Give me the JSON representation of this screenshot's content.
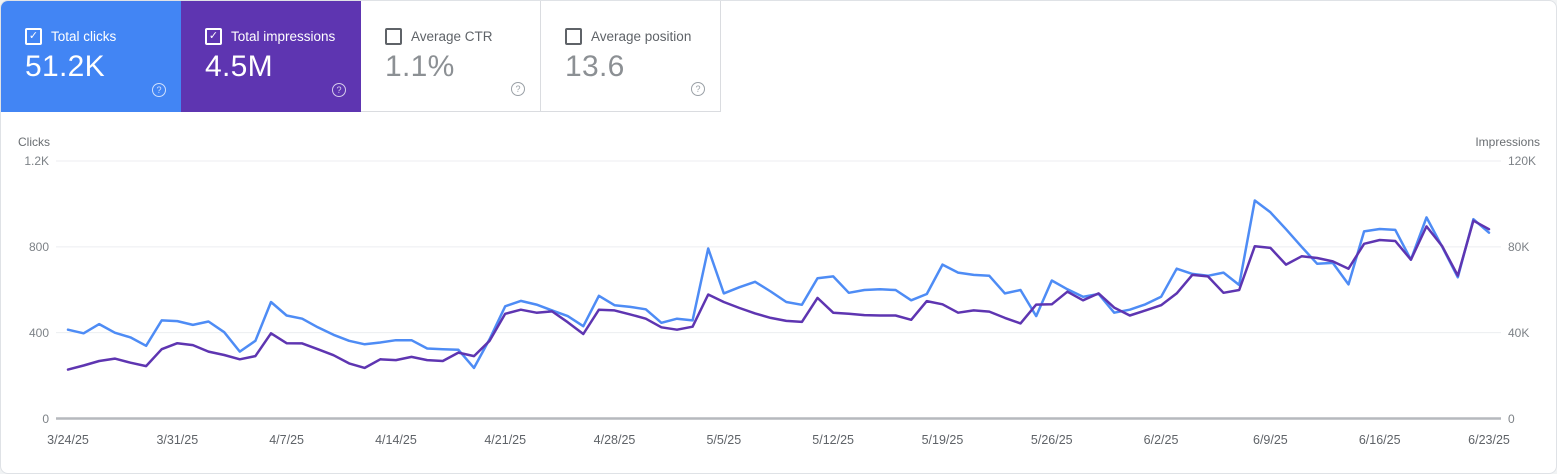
{
  "cards": [
    {
      "label": "Total clicks",
      "value": "51.2K",
      "checked": true,
      "bg": "#4285f4"
    },
    {
      "label": "Total impressions",
      "value": "4.5M",
      "checked": true,
      "bg": "#5e35b1"
    },
    {
      "label": "Average CTR",
      "value": "1.1%",
      "checked": false,
      "bg": "#ffffff"
    },
    {
      "label": "Average position",
      "value": "13.6",
      "checked": false,
      "bg": "#ffffff"
    }
  ],
  "icons": {
    "check": "✓",
    "help": "?"
  },
  "chart_data": {
    "type": "line",
    "x_granularity": "daily",
    "x_start": "3/24/25",
    "x_end": "6/23/25",
    "x_tick_labels": [
      "3/24/25",
      "3/31/25",
      "4/7/25",
      "4/14/25",
      "4/21/25",
      "4/28/25",
      "5/5/25",
      "5/12/25",
      "5/19/25",
      "5/26/25",
      "6/2/25",
      "6/9/25",
      "6/16/25",
      "6/23/25"
    ],
    "left_axis": {
      "title": "Clicks",
      "ticks": [
        "1.2K",
        "800",
        "400",
        "0"
      ],
      "range": [
        0,
        1200
      ]
    },
    "right_axis": {
      "title": "Impressions",
      "ticks": [
        "120K",
        "80K",
        "40K",
        "0"
      ],
      "range": [
        0,
        120000
      ]
    },
    "grid": "horizontal",
    "legend": "none (metric cards act as series toggles)",
    "series": [
      {
        "name": "Total clicks",
        "axis": "left",
        "color": "#4e8cf5",
        "values": [
          414,
          397,
          440,
          400,
          378,
          339,
          457,
          454,
          436,
          452,
          402,
          312,
          362,
          543,
          480,
          465,
          425,
          390,
          362,
          346,
          354,
          365,
          365,
          326,
          323,
          320,
          236,
          370,
          523,
          548,
          531,
          504,
          477,
          430,
          572,
          528,
          520,
          509,
          446,
          465,
          457,
          792,
          583,
          612,
          637,
          592,
          543,
          530,
          654,
          662,
          586,
          599,
          602,
          599,
          551,
          580,
          717,
          680,
          669,
          665,
          583,
          599,
          477,
          643,
          602,
          567,
          580,
          493,
          507,
          532,
          567,
          698,
          674,
          665,
          680,
          622,
          1016,
          961,
          882,
          800,
          721,
          725,
          625,
          872,
          883,
          879,
          740,
          937,
          800,
          658,
          929,
          866
        ]
      },
      {
        "name": "Total impressions",
        "axis": "right",
        "color": "#5e35b1",
        "values": [
          22800,
          24700,
          26800,
          27900,
          26000,
          24400,
          32300,
          35100,
          34200,
          31200,
          29600,
          27600,
          29100,
          39700,
          35100,
          35000,
          32300,
          29500,
          25700,
          23600,
          27600,
          27200,
          28700,
          27200,
          26800,
          30700,
          29100,
          36200,
          48800,
          50700,
          49300,
          49900,
          44900,
          39400,
          50700,
          50400,
          48500,
          46500,
          42500,
          41400,
          42800,
          57800,
          54300,
          51500,
          49000,
          46900,
          45500,
          45000,
          56200,
          49300,
          48800,
          48200,
          48000,
          48000,
          46000,
          54700,
          53200,
          49300,
          50400,
          49800,
          46900,
          44300,
          53100,
          53200,
          59100,
          55100,
          58300,
          51700,
          48000,
          50400,
          52800,
          58300,
          66900,
          66200,
          58600,
          59900,
          80300,
          79500,
          71700,
          75600,
          74800,
          73200,
          69800,
          81400,
          83200,
          82700,
          74000,
          89500,
          80300,
          66600,
          92200,
          88200
        ]
      }
    ]
  }
}
